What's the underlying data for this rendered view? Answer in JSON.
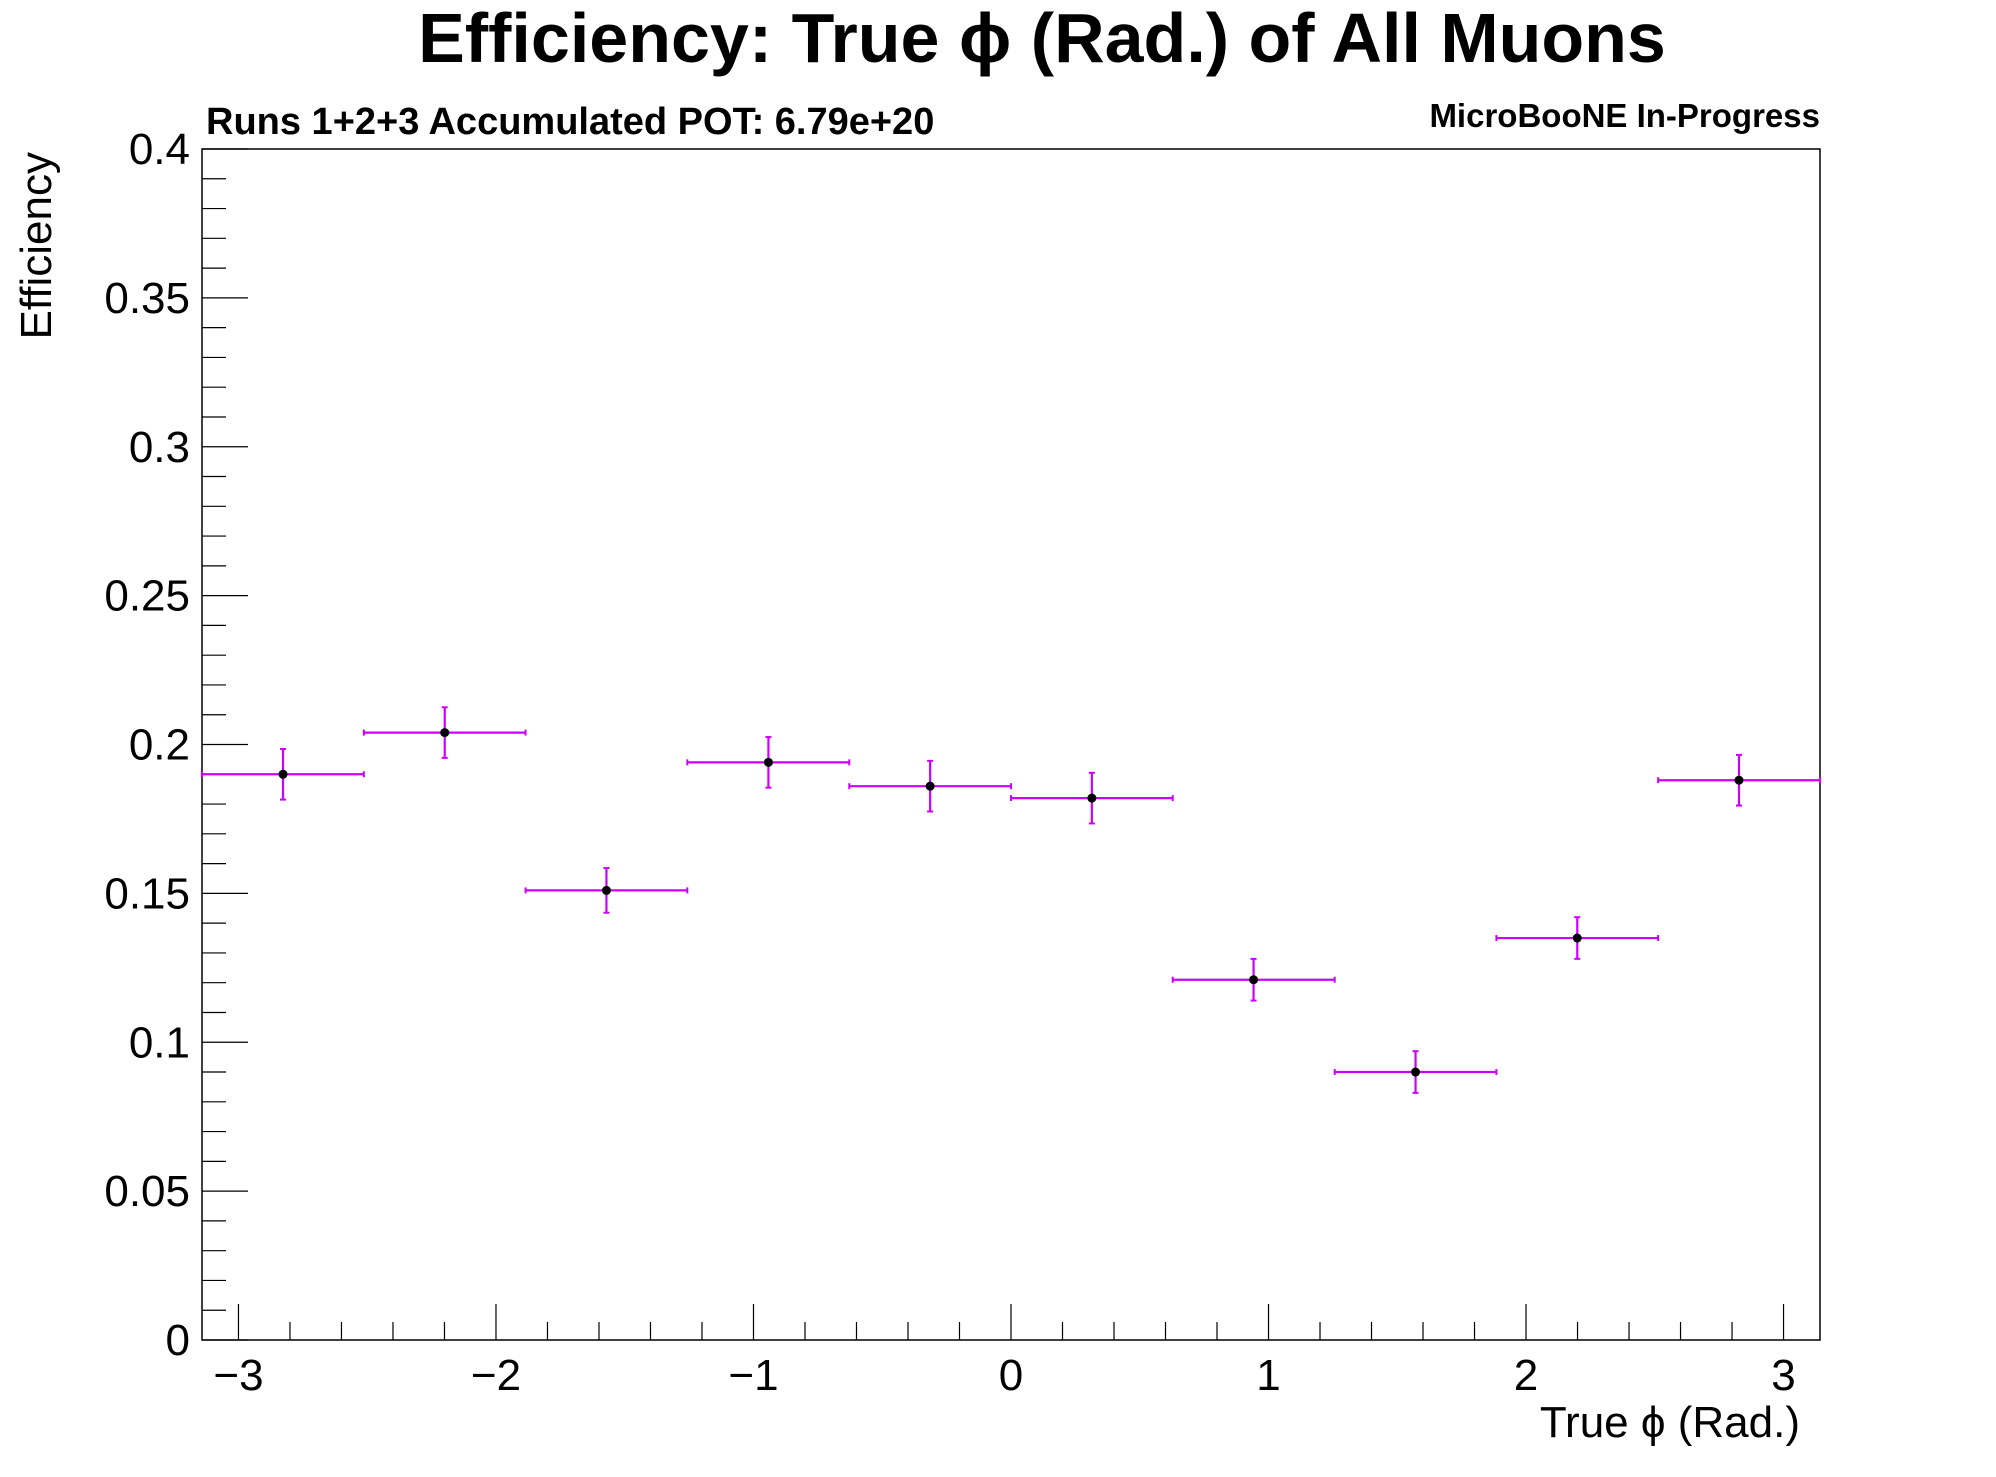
{
  "chart_data": {
    "type": "scatter",
    "title": "Efficiency: True  ϕ (Rad.) of All Muons",
    "subtitle": "Runs 1+2+3 Accumulated POT: 6.79e+20",
    "corner_tag": "MicroBooNE In-Progress",
    "xlabel": "True ϕ (Rad.)",
    "ylabel": "Efficiency",
    "xlim": [
      -3.1416,
      3.1416
    ],
    "ylim": [
      0,
      0.4
    ],
    "x_ticks": [
      -3,
      -2,
      -1,
      0,
      1,
      2,
      3
    ],
    "x_tick_labels": [
      "−3",
      "−2",
      "−1",
      "0",
      "1",
      "2",
      "3"
    ],
    "y_ticks": [
      0,
      0.05,
      0.1,
      0.15,
      0.2,
      0.25,
      0.3,
      0.35,
      0.4
    ],
    "y_tick_labels": [
      "0",
      "0.05",
      "0.1",
      "0.15",
      "0.2",
      "0.25",
      "0.3",
      "0.35",
      "0.4"
    ],
    "grid": false,
    "legend": "none",
    "series": [
      {
        "color": "#cc00ff",
        "marker_color": "#000000",
        "points": [
          {
            "x": -2.827,
            "y": 0.19,
            "x_low": -3.142,
            "x_high": -2.513,
            "y_err": 0.0085
          },
          {
            "x": -2.199,
            "y": 0.204,
            "x_low": -2.513,
            "x_high": -1.885,
            "y_err": 0.0085
          },
          {
            "x": -1.571,
            "y": 0.151,
            "x_low": -1.885,
            "x_high": -1.257,
            "y_err": 0.0075
          },
          {
            "x": -0.942,
            "y": 0.194,
            "x_low": -1.257,
            "x_high": -0.628,
            "y_err": 0.0085
          },
          {
            "x": -0.314,
            "y": 0.186,
            "x_low": -0.628,
            "x_high": 0.0,
            "y_err": 0.0085
          },
          {
            "x": 0.314,
            "y": 0.182,
            "x_low": 0.0,
            "x_high": 0.628,
            "y_err": 0.0085
          },
          {
            "x": 0.942,
            "y": 0.121,
            "x_low": 0.628,
            "x_high": 1.257,
            "y_err": 0.007
          },
          {
            "x": 1.571,
            "y": 0.09,
            "x_low": 1.257,
            "x_high": 1.885,
            "y_err": 0.007
          },
          {
            "x": 2.199,
            "y": 0.135,
            "x_low": 1.885,
            "x_high": 2.513,
            "y_err": 0.007
          },
          {
            "x": 2.827,
            "y": 0.188,
            "x_low": 2.513,
            "x_high": 3.142,
            "y_err": 0.0085
          }
        ]
      }
    ]
  }
}
